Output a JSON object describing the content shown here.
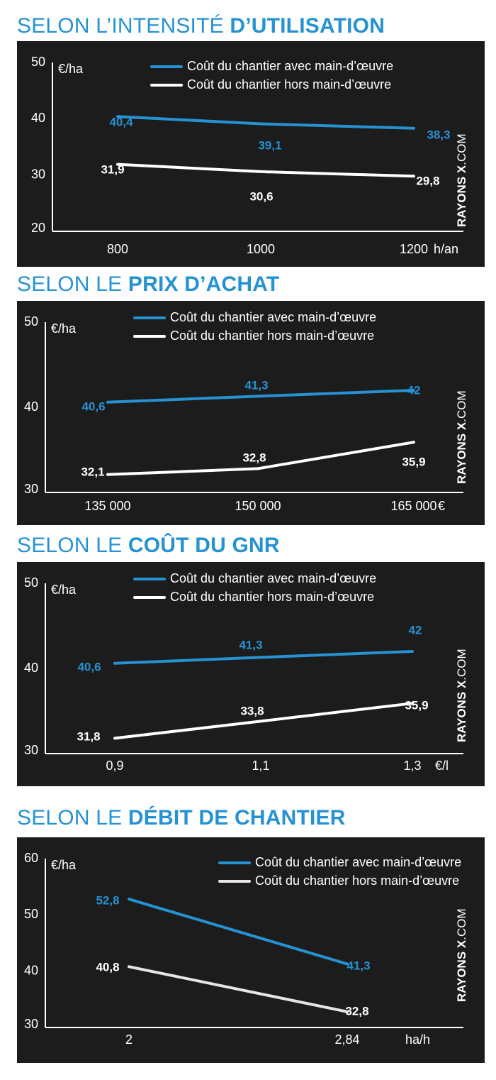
{
  "watermark": {
    "bold": "RAYONS X",
    "light": ".COM"
  },
  "sections": [
    {
      "title_light": "SELON L’INTENSITÉ ",
      "title_bold": "D’UTILISATION",
      "chart_data": {
        "type": "line",
        "unit_label": "€/ha",
        "x_unit": "h/an",
        "categories": [
          "800",
          "1000",
          "1200"
        ],
        "series": [
          {
            "name": "Coût du chantier avec main-d’œuvre",
            "color": "#2592d3",
            "values": [
              40.4,
              39.1,
              38.3
            ],
            "labels": [
              "40,4",
              "39,1",
              "38,3"
            ]
          },
          {
            "name": "Coût du chantier hors main-d’œuvre",
            "color": "#ffffff",
            "values": [
              31.9,
              30.6,
              29.8
            ],
            "labels": [
              "31,9",
              "30,6",
              "29,8"
            ]
          }
        ],
        "yticks": [
          20,
          30,
          40,
          50
        ],
        "ylim": [
          20,
          50
        ]
      }
    },
    {
      "title_light": "SELON LE ",
      "title_bold": "PRIX D’ACHAT",
      "chart_data": {
        "type": "line",
        "unit_label": "€/ha",
        "x_unit": "€",
        "categories": [
          "135 000",
          "150 000",
          "165 000"
        ],
        "series": [
          {
            "name": "Coût du chantier avec main-d’œuvre",
            "color": "#2592d3",
            "values": [
              40.6,
              41.3,
              42
            ],
            "labels": [
              "40,6",
              "41,3",
              "42"
            ]
          },
          {
            "name": "Coût du chantier hors main-d’œuvre",
            "color": "#ffffff",
            "values": [
              32.1,
              32.8,
              35.9
            ],
            "labels": [
              "32,1",
              "32,8",
              "35,9"
            ]
          }
        ],
        "yticks": [
          30,
          40,
          50
        ],
        "ylim": [
          30,
          50
        ]
      }
    },
    {
      "title_light": "SELON LE ",
      "title_bold": "COÛT DU GNR",
      "chart_data": {
        "type": "line",
        "unit_label": "€/ha",
        "x_unit": "€/l",
        "categories": [
          "0,9",
          "1,1",
          "1,3"
        ],
        "series": [
          {
            "name": "Coût du chantier avec main-d’œuvre",
            "color": "#2592d3",
            "values": [
              40.6,
              41.3,
              42
            ],
            "labels": [
              "40,6",
              "41,3",
              "42"
            ]
          },
          {
            "name": "Coût du chantier hors main-d’œuvre",
            "color": "#ffffff",
            "values": [
              31.8,
              33.8,
              35.9
            ],
            "labels": [
              "31,8",
              "33,8",
              "35,9"
            ]
          }
        ],
        "yticks": [
          30,
          40,
          50
        ],
        "ylim": [
          30,
          50
        ]
      }
    },
    {
      "title_light": "SELON LE ",
      "title_bold": "DÉBIT DE CHANTIER",
      "chart_data": {
        "type": "line",
        "unit_label": "€/ha",
        "x_unit": "ha/h",
        "categories": [
          "2",
          "2,84"
        ],
        "series": [
          {
            "name": "Coût du chantier avec main-d’œuvre",
            "color": "#2592d3",
            "values": [
              52.8,
              41.3
            ],
            "labels": [
              "52,8",
              "41,3"
            ]
          },
          {
            "name": "Coût du chantier hors main-d’œuvre",
            "color": "#e6e6e6",
            "values": [
              40.8,
              32.8
            ],
            "labels": [
              "40,8",
              "32,8"
            ]
          }
        ],
        "yticks": [
          30,
          40,
          50,
          60
        ],
        "ylim": [
          30,
          60
        ]
      }
    }
  ]
}
